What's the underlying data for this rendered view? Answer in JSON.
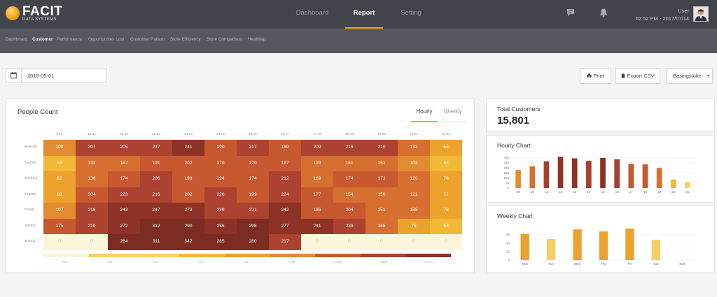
{
  "brand": {
    "name": "FACIT",
    "sub": "DATA SYSTEMS"
  },
  "topnav": [
    "Dashboard",
    "Report",
    "Setting"
  ],
  "user": {
    "name": "User",
    "datetime": "02:52 PM - 2017/07/14"
  },
  "subnav": [
    "Dashboard",
    "Customer",
    "Performance",
    "Opportunities Lost",
    "Customer Pattern",
    "Store Efficiency",
    "Store Comparison",
    "HeatMap"
  ],
  "filters": {
    "date": "2016-05-01",
    "print": "Print",
    "export": "Export CSV",
    "store": "Basingstoke",
    "store_caret": "▾"
  },
  "people": {
    "title": "People Count",
    "tabs": [
      "Hourly",
      "Weekly"
    ],
    "cols": [
      "9-10",
      "10-11",
      "11-12",
      "12-13",
      "13-14",
      "14-15",
      "15-16",
      "16-17",
      "17-18",
      "18-19",
      "19-20",
      "20-21",
      "21-22"
    ],
    "rows": [
      "Mon(25)",
      "Tue(26)",
      "Wed(27)",
      "Thu(28)",
      "Fri(29)",
      "Sat(30)",
      "Sun(01)"
    ],
    "values": [
      [
        "100",
        "207",
        "205",
        "237",
        "241",
        "190",
        "217",
        "189",
        "209",
        "216",
        "210",
        "132",
        "65"
      ],
      [
        "54",
        "132",
        "167",
        "191",
        "202",
        "170",
        "170",
        "187",
        "129",
        "161",
        "161",
        "102",
        "53"
      ],
      [
        "82",
        "136",
        "174",
        "206",
        "199",
        "194",
        "174",
        "212",
        "169",
        "174",
        "172",
        "120",
        "76"
      ],
      [
        "89",
        "204",
        "223",
        "216",
        "202",
        "226",
        "199",
        "224",
        "177",
        "154",
        "150",
        "121",
        "71"
      ],
      [
        "107",
        "218",
        "243",
        "247",
        "273",
        "239",
        "231",
        "242",
        "186",
        "204",
        "151",
        "158",
        "78"
      ],
      [
        "175",
        "210",
        "272",
        "312",
        "290",
        "256",
        "298",
        "277",
        "241",
        "239",
        "166",
        "76",
        "52"
      ],
      [
        "0",
        "0",
        "284",
        "311",
        "342",
        "285",
        "280",
        "217",
        "0",
        "0",
        "0",
        "0",
        "0"
      ]
    ],
    "legend": [
      ">=0",
      ">=1",
      ">=2",
      ">=3",
      ">=4",
      ">=69",
      ">=136",
      ">=205",
      ">=273"
    ]
  },
  "total": {
    "label": "Total Customers",
    "value": "15,801"
  },
  "chart_data": [
    {
      "type": "bar",
      "title": "Hourly Chart",
      "categories": [
        "09",
        "10",
        "11",
        "12",
        "13",
        "14",
        "15",
        "16",
        "17",
        "18",
        "19",
        "20",
        "21"
      ],
      "values": [
        180,
        215,
        265,
        310,
        295,
        270,
        300,
        285,
        240,
        235,
        200,
        85,
        60
      ],
      "yticks": [
        0,
        50,
        100,
        150,
        200,
        250,
        300
      ],
      "ylim": [
        0,
        320
      ]
    },
    {
      "type": "bar",
      "title": "Weekly Chart",
      "categories": [
        "Mon",
        "Tue",
        "Wed",
        "Thu",
        "Fri",
        "Sat",
        "Sun"
      ],
      "values": [
        62,
        50,
        73,
        68,
        75,
        48,
        0
      ],
      "yticks": [
        0,
        20,
        40,
        60
      ],
      "ylim": [
        0,
        80
      ]
    }
  ],
  "colors": {
    "accent": "#f0a21a",
    "heat": [
      "#fbf6d9",
      "#f5d360",
      "#f1b935",
      "#eca22c",
      "#e38b31",
      "#d66f2f",
      "#c8582f",
      "#ac422f",
      "#8d3225"
    ]
  }
}
